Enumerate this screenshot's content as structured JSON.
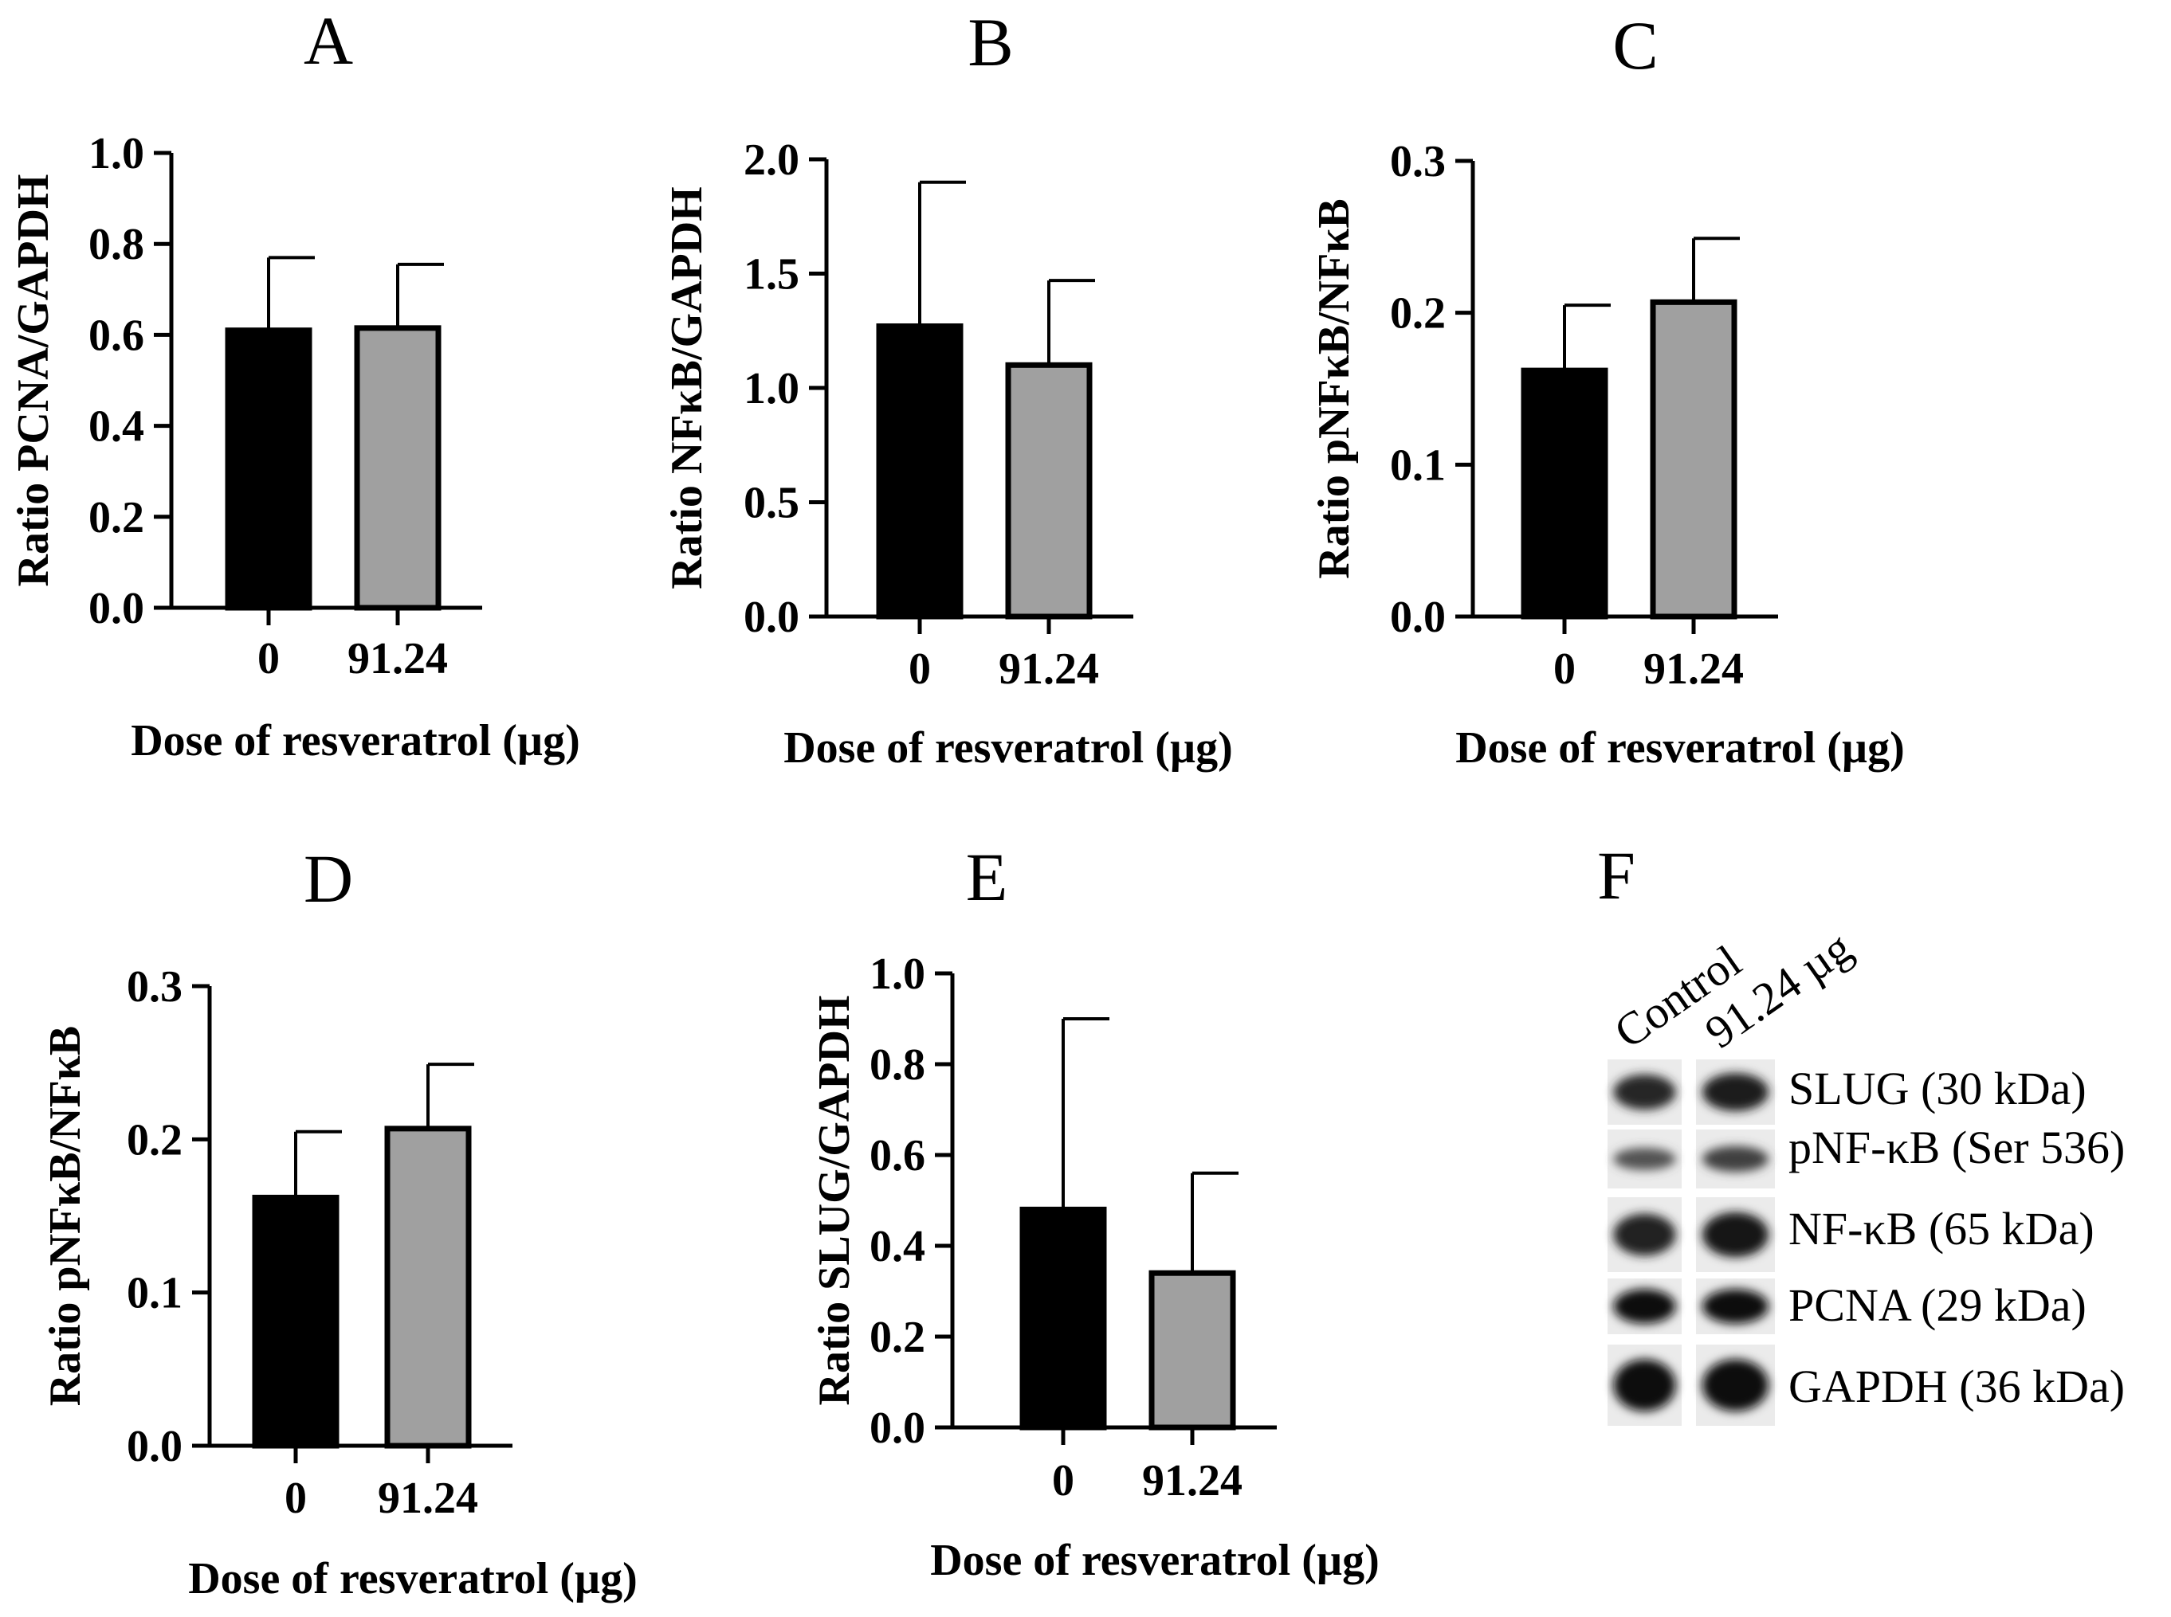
{
  "chart_data": [
    {
      "panel": "A",
      "type": "bar",
      "categories": [
        "0",
        "91.24"
      ],
      "values": [
        0.61,
        0.615
      ],
      "errors": [
        0.16,
        0.14
      ],
      "ylabel": "Ratio PCNA/GAPDH",
      "xlabel": "Dose of resveratrol (µg)",
      "ylim": [
        0,
        1.0
      ],
      "yticks": [
        0.0,
        0.2,
        0.4,
        0.6,
        0.8,
        1.0
      ],
      "ytick_labels": [
        "0.0",
        "0.2",
        "0.4",
        "0.6",
        "0.8",
        "1.0"
      ]
    },
    {
      "panel": "B",
      "type": "bar",
      "categories": [
        "0",
        "91.24"
      ],
      "values": [
        1.27,
        1.1
      ],
      "errors": [
        0.63,
        0.37
      ],
      "ylabel": "Ratio NFκB/GAPDH",
      "xlabel": "Dose of resveratrol (µg)",
      "ylim": [
        0,
        2.0
      ],
      "yticks": [
        0.0,
        0.5,
        1.0,
        1.5,
        2.0
      ],
      "ytick_labels": [
        "0.0",
        "0.5",
        "1.0",
        "1.5",
        "2.0"
      ]
    },
    {
      "panel": "C",
      "type": "bar",
      "categories": [
        "0",
        "91.24"
      ],
      "values": [
        0.162,
        0.207
      ],
      "errors": [
        0.043,
        0.042
      ],
      "ylabel": "Ratio pNFκB/NFκB",
      "xlabel": "Dose of resveratrol (µg)",
      "ylim": [
        0,
        0.3
      ],
      "yticks": [
        0.0,
        0.1,
        0.2,
        0.3
      ],
      "ytick_labels": [
        "0.0",
        "0.1",
        "0.2",
        "0.3"
      ]
    },
    {
      "panel": "D",
      "type": "bar",
      "categories": [
        "0",
        "91.24"
      ],
      "values": [
        0.162,
        0.207
      ],
      "errors": [
        0.043,
        0.042
      ],
      "ylabel": "Ratio pNFκB/NFκB",
      "xlabel": "Dose of resveratrol (µg)",
      "ylim": [
        0,
        0.3
      ],
      "yticks": [
        0.0,
        0.1,
        0.2,
        0.3
      ],
      "ytick_labels": [
        "0.0",
        "0.1",
        "0.2",
        "0.3"
      ]
    },
    {
      "panel": "E",
      "type": "bar",
      "categories": [
        "0",
        "91.24"
      ],
      "values": [
        0.48,
        0.34
      ],
      "errors": [
        0.42,
        0.22
      ],
      "ylabel": "Ratio SLUG/GAPDH",
      "xlabel": "Dose of resveratrol (µg)",
      "ylim": [
        0,
        1.0
      ],
      "yticks": [
        0.0,
        0.2,
        0.4,
        0.6,
        0.8,
        1.0
      ],
      "ytick_labels": [
        "0.0",
        "0.2",
        "0.4",
        "0.6",
        "0.8",
        "1.0"
      ]
    }
  ],
  "bar_colors": [
    "#000000",
    "#a0a0a0"
  ],
  "blot": {
    "panel": "F",
    "lanes": [
      "Control",
      "91.24 µg"
    ],
    "rows": [
      {
        "label": "SLUG (30 kDa)",
        "intensity": [
          0.75,
          0.85
        ]
      },
      {
        "label": "pNF-κB (Ser 536)",
        "intensity": [
          0.35,
          0.5
        ]
      },
      {
        "label": "NF-κB (65 kDa)",
        "intensity": [
          0.8,
          0.9
        ]
      },
      {
        "label": "PCNA (29 kDa)",
        "intensity": [
          0.95,
          0.95
        ]
      },
      {
        "label": "GAPDH (36 kDa)",
        "intensity": [
          1.0,
          1.0
        ]
      }
    ]
  }
}
